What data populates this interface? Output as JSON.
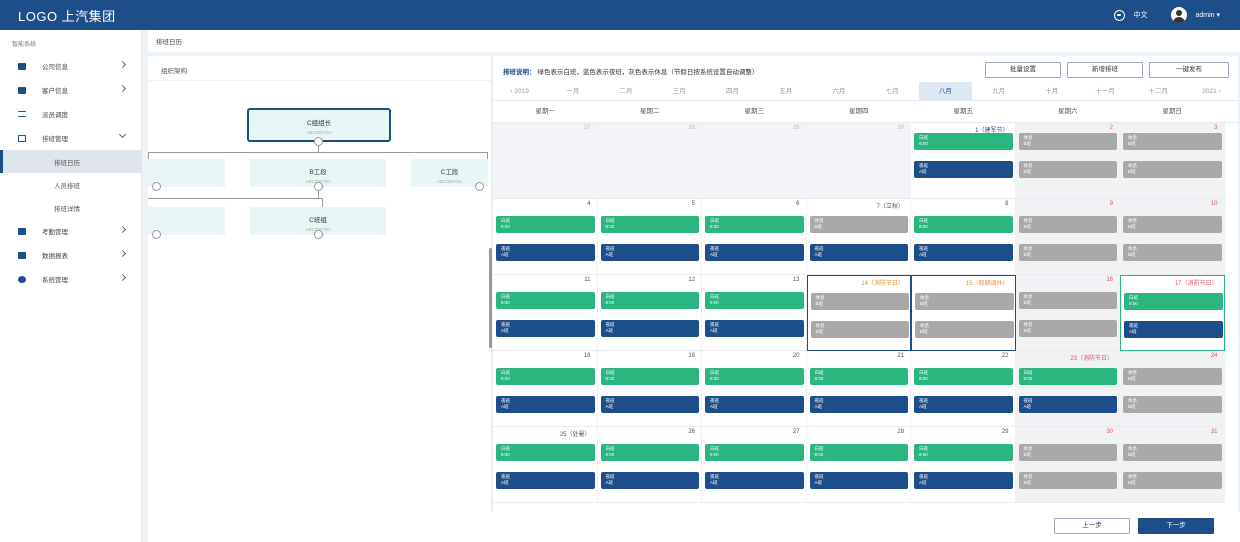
{
  "header": {
    "logo": "LOGO 上汽集团",
    "lang": "中文",
    "user": "admin ▾"
  },
  "sidebar": {
    "title": "智能系统",
    "items": [
      {
        "label": "公司信息",
        "icon": "home-icon",
        "chevron": "right"
      },
      {
        "label": "客户信息",
        "icon": "file-icon",
        "chevron": "right"
      },
      {
        "label": "派员调度",
        "icon": "list-icon",
        "chevron": "none"
      },
      {
        "label": "排班管理",
        "icon": "calendar-icon",
        "chevron": "down"
      }
    ],
    "subitems": [
      {
        "label": "排班日历",
        "active": true
      },
      {
        "label": "人员排班",
        "active": false
      },
      {
        "label": "排班详情",
        "active": false
      }
    ],
    "items2": [
      {
        "label": "考勤管理",
        "icon": "clock-icon"
      },
      {
        "label": "数据报表",
        "icon": "chart-icon"
      },
      {
        "label": "系统管理",
        "icon": "gear-icon"
      }
    ]
  },
  "breadcrumb": "排班日历",
  "left_panel": {
    "title": "组织架构",
    "nodes": [
      {
        "name": "C组组长",
        "sub": "ABCDEFGH"
      },
      {
        "name": "B工段",
        "sub": "ABCDEFGH"
      },
      {
        "name": "C工段",
        "sub": "ABCDEFGH"
      },
      {
        "name": "C班组",
        "sub": "ABCDEFGH"
      }
    ]
  },
  "right_panel": {
    "legend_label": "排班说明：",
    "legend_text": "绿色表示白班，蓝色表示夜班，灰色表示休息（节假日按系统设置自动调整）",
    "buttons": [
      "批量设置",
      "新增排班",
      "一键发布"
    ],
    "year_prev": "‹ 2019",
    "months": [
      "一月",
      "二月",
      "三月",
      "四月",
      "五月",
      "六月",
      "七月",
      "八月",
      "九月",
      "十月",
      "十一月",
      "十二月"
    ],
    "active_month": "八月",
    "year_next": "2021 ›",
    "weekdays": [
      "星期一",
      "星期二",
      "星期三",
      "星期四",
      "星期五",
      "星期六",
      "星期日"
    ],
    "shift_labels": {
      "day": {
        "t1": "白班",
        "t2": "8:00"
      },
      "night": {
        "t1": "夜班",
        "t2": "A班"
      },
      "rest": {
        "t1": "休息",
        "t2": "B班"
      }
    },
    "weeks": [
      [
        "27",
        "28",
        "29",
        "30",
        "1（建军节）",
        "2",
        "3"
      ],
      [
        "4",
        "5",
        "6",
        "7（立秋）",
        "8",
        "9",
        "10"
      ],
      [
        "11",
        "12",
        "13",
        "14（消防节日）",
        "15（假期调休）",
        "16",
        "17（消防节日）"
      ],
      [
        "18",
        "19",
        "20",
        "21",
        "22",
        "23（消防节日）",
        "24"
      ],
      [
        "25（处暑）",
        "26",
        "27",
        "28",
        "29",
        "30",
        "31"
      ]
    ]
  },
  "footer": {
    "prev": "上一步",
    "next": "下一步"
  }
}
